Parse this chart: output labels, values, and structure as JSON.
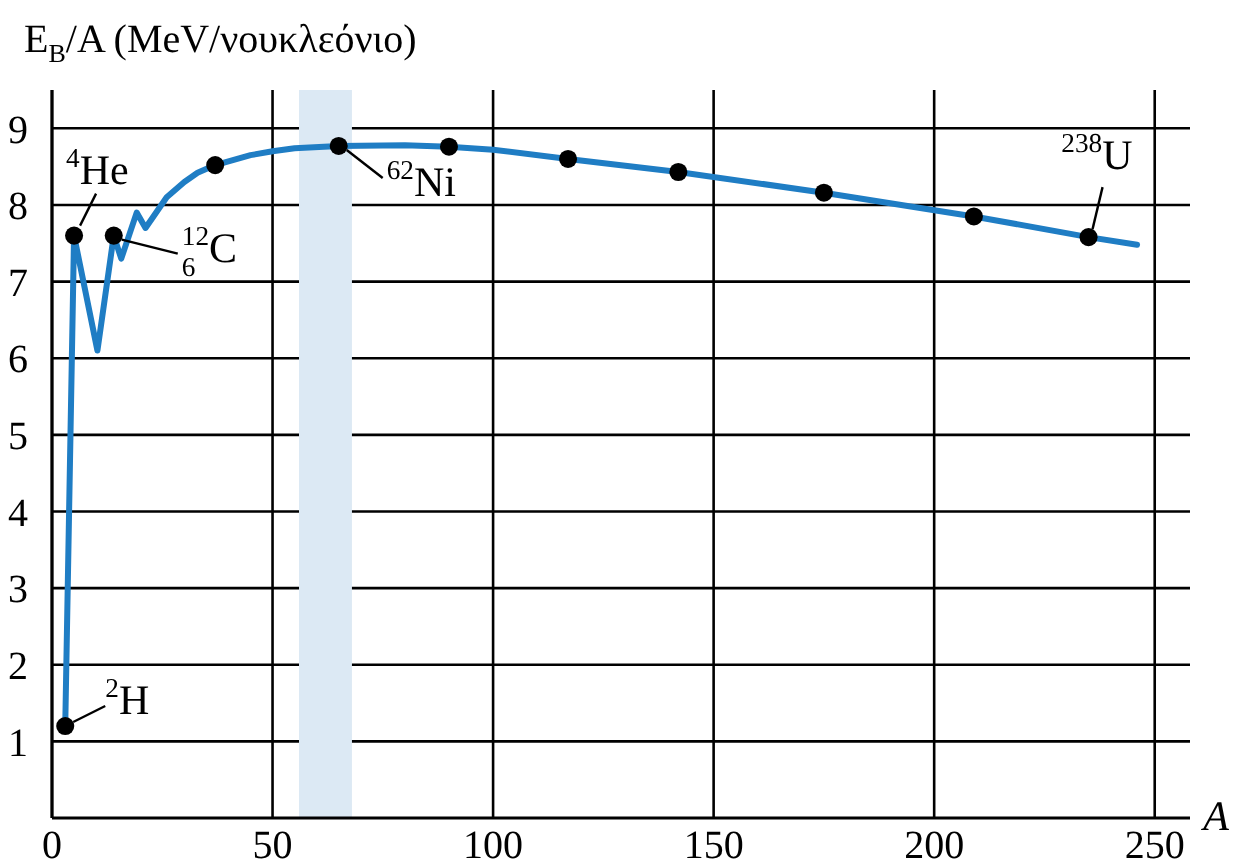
{
  "chart_data": {
    "type": "line",
    "ylabel": "E$_{B}$/A (MeV/νουκλεόνιο)",
    "xlabel": "A",
    "xlim": [
      0,
      258
    ],
    "xticks": [
      0,
      50,
      100,
      150,
      200,
      250
    ],
    "ylim": [
      0,
      9.5
    ],
    "yticks": [
      1,
      2,
      3,
      4,
      5,
      6,
      7,
      8,
      9
    ],
    "grid": true,
    "series": [
      {
        "color": "#1f7dc4",
        "marker": "none",
        "x": [
          3,
          5,
          10.3,
          14,
          15.7,
          19.2,
          21.2,
          26,
          30,
          33,
          37,
          45,
          50,
          55,
          65,
          80,
          90,
          100,
          117,
          142,
          175,
          209,
          235,
          246
        ],
        "values": [
          1.2,
          7.6,
          6.1,
          7.6,
          7.3,
          7.9,
          7.7,
          8.1,
          8.3,
          8.42,
          8.52,
          8.65,
          8.7,
          8.74,
          8.77,
          8.78,
          8.76,
          8.72,
          8.6,
          8.43,
          8.16,
          7.85,
          7.58,
          7.48
        ]
      },
      {
        "type": "scatter",
        "color": "#000000",
        "marker": "circle",
        "x": [
          3,
          5,
          14,
          37,
          65,
          90,
          117,
          142,
          175,
          209,
          235
        ],
        "values": [
          1.2,
          7.6,
          7.6,
          8.52,
          8.77,
          8.76,
          8.6,
          8.43,
          8.16,
          7.85,
          7.58
        ]
      }
    ],
    "bands": [
      {
        "axis": "x",
        "from": 56,
        "to": 68,
        "color": "#dce9f4"
      }
    ],
    "annotations": [
      {
        "text": "$^{2}$H",
        "x": 3,
        "y": 1.2
      },
      {
        "text": "$^{4}$He",
        "x": 5,
        "y": 7.6
      },
      {
        "text": "$^{12}$$_{6}$C",
        "x": 14,
        "y": 7.6
      },
      {
        "text": "$^{62}$Ni",
        "x": 65,
        "y": 8.77
      },
      {
        "text": "$^{238}$U",
        "x": 235,
        "y": 7.58
      }
    ]
  }
}
